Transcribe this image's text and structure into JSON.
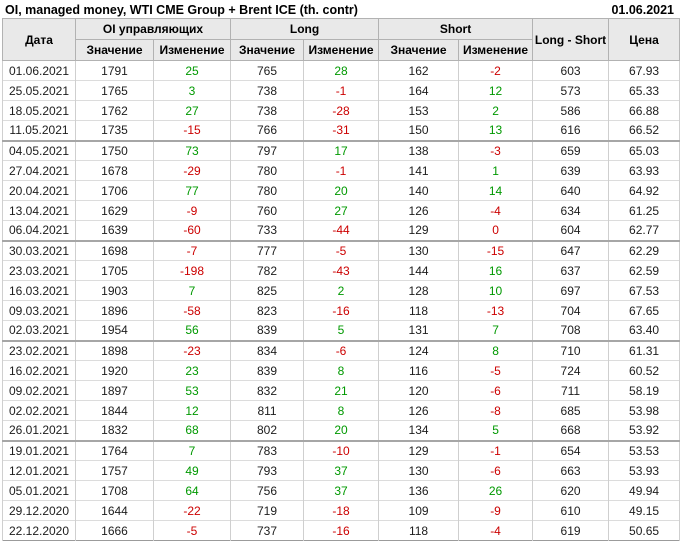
{
  "title": "OI, managed money, WTI CME Group + Brent ICE (th. contr)",
  "report_date": "01.06.2021",
  "colors": {
    "positive_change": "#009900",
    "negative_change": "#cc0000",
    "header_background": "#e9e9e9"
  },
  "table": {
    "date_header": "Дата",
    "groups": [
      "OI управляющих",
      "Long",
      "Short"
    ],
    "sub_value": "Значение",
    "sub_change": "Изменение",
    "long_short_header": "Long - Short",
    "price_header": "Цена"
  },
  "group_separator_row_indices": [
    4,
    9,
    14,
    19
  ],
  "chart_data": {
    "type": "table",
    "title": "OI, managed money, WTI CME Group + Brent ICE (th. contr)",
    "columns": [
      "Дата",
      "OI управляющих Значение",
      "OI управляющих Изменение",
      "Long Значение",
      "Long Изменение",
      "Short Значение",
      "Short Изменение",
      "Long - Short",
      "Цена"
    ],
    "change_column_indices": [
      2,
      4,
      6
    ],
    "rows": [
      [
        "01.06.2021",
        1791,
        25,
        765,
        28,
        162,
        -2,
        603,
        "67.93"
      ],
      [
        "25.05.2021",
        1765,
        3,
        738,
        -1,
        164,
        12,
        573,
        "65.33"
      ],
      [
        "18.05.2021",
        1762,
        27,
        738,
        -28,
        153,
        2,
        586,
        "66.88"
      ],
      [
        "11.05.2021",
        1735,
        -15,
        766,
        -31,
        150,
        13,
        616,
        "66.52"
      ],
      [
        "04.05.2021",
        1750,
        73,
        797,
        17,
        138,
        -3,
        659,
        "65.03"
      ],
      [
        "27.04.2021",
        1678,
        -29,
        780,
        -1,
        141,
        1,
        639,
        "63.93"
      ],
      [
        "20.04.2021",
        1706,
        77,
        780,
        20,
        140,
        14,
        640,
        "64.92"
      ],
      [
        "13.04.2021",
        1629,
        -9,
        760,
        27,
        126,
        -4,
        634,
        "61.25"
      ],
      [
        "06.04.2021",
        1639,
        -60,
        733,
        -44,
        129,
        0,
        604,
        "62.77"
      ],
      [
        "30.03.2021",
        1698,
        -7,
        777,
        -5,
        130,
        -15,
        647,
        "62.29"
      ],
      [
        "23.03.2021",
        1705,
        -198,
        782,
        -43,
        144,
        16,
        637,
        "62.59"
      ],
      [
        "16.03.2021",
        1903,
        7,
        825,
        2,
        128,
        10,
        697,
        "67.53"
      ],
      [
        "09.03.2021",
        1896,
        -58,
        823,
        -16,
        118,
        -13,
        704,
        "67.65"
      ],
      [
        "02.03.2021",
        1954,
        56,
        839,
        5,
        131,
        7,
        708,
        "63.40"
      ],
      [
        "23.02.2021",
        1898,
        -23,
        834,
        -6,
        124,
        8,
        710,
        "61.31"
      ],
      [
        "16.02.2021",
        1920,
        23,
        839,
        8,
        116,
        -5,
        724,
        "60.52"
      ],
      [
        "09.02.2021",
        1897,
        53,
        832,
        21,
        120,
        -6,
        711,
        "58.19"
      ],
      [
        "02.02.2021",
        1844,
        12,
        811,
        8,
        126,
        -8,
        685,
        "53.98"
      ],
      [
        "26.01.2021",
        1832,
        68,
        802,
        20,
        134,
        5,
        668,
        "53.92"
      ],
      [
        "19.01.2021",
        1764,
        7,
        783,
        -10,
        129,
        -1,
        654,
        "53.53"
      ],
      [
        "12.01.2021",
        1757,
        49,
        793,
        37,
        130,
        -6,
        663,
        "53.93"
      ],
      [
        "05.01.2021",
        1708,
        64,
        756,
        37,
        136,
        26,
        620,
        "49.94"
      ],
      [
        "29.12.2020",
        1644,
        -22,
        719,
        -18,
        109,
        -9,
        610,
        "49.15"
      ],
      [
        "22.12.2020",
        1666,
        -5,
        737,
        -16,
        118,
        -4,
        619,
        "50.65"
      ]
    ]
  }
}
